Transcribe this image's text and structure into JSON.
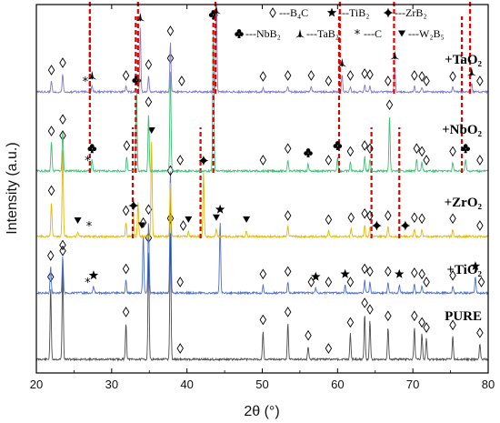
{
  "chart_data": {
    "type": "line",
    "xlabel": "2θ (°)",
    "ylabel": "Intensity (a.u.)",
    "xlim": [
      20,
      80
    ],
    "x_ticks": [
      "20",
      "30",
      "40",
      "50",
      "60",
      "70",
      "80"
    ],
    "grid": false,
    "legend_position": "top",
    "legend": [
      {
        "symbol": "diamond",
        "text": "---B₄C"
      },
      {
        "symbol": "star",
        "text": "---TiB₂"
      },
      {
        "symbol": "star4",
        "text": "---ZrB₂"
      },
      {
        "symbol": "club",
        "text": "---NbB₂"
      },
      {
        "symbol": "tab",
        "text": "---TaB₂"
      },
      {
        "symbol": "asterisk",
        "text": "---C"
      },
      {
        "symbol": "triangle-down",
        "text": "---W₂B₅"
      }
    ],
    "colors": {
      "PURE": "#4d4d4d",
      "+TiO₂": "#4a6fd0",
      "+ZrO₂": "#e6b800",
      "+NbO₂": "#3dbf73",
      "+TaO₂": "#7c7cc8",
      "dashed": "#e00000"
    },
    "series": [
      {
        "name": "PURE",
        "label": "PURE",
        "peaks": [
          [
            21.9,
            0.55
          ],
          [
            23.5,
            0.75
          ],
          [
            31.9,
            0.28
          ],
          [
            34.9,
            0.85
          ],
          [
            37.8,
            1.0
          ],
          [
            50.1,
            0.22
          ],
          [
            53.4,
            0.28
          ],
          [
            56.1,
            0.1
          ],
          [
            61.7,
            0.2
          ],
          [
            63.6,
            0.35
          ],
          [
            64.3,
            0.3
          ],
          [
            66.7,
            0.25
          ],
          [
            70.2,
            0.25
          ],
          [
            71.2,
            0.2
          ],
          [
            71.8,
            0.16
          ],
          [
            75.3,
            0.18
          ],
          [
            78.9,
            0.12
          ]
        ],
        "markers": [
          [
            21.9,
            "diamond"
          ],
          [
            23.5,
            "diamond"
          ],
          [
            31.9,
            "diamond"
          ],
          [
            34.9,
            "diamond"
          ],
          [
            37.8,
            "diamond"
          ],
          [
            39.1,
            "diamond"
          ],
          [
            50.1,
            "diamond"
          ],
          [
            53.4,
            "diamond"
          ],
          [
            56.1,
            "diamond"
          ],
          [
            58.8,
            "diamond"
          ],
          [
            61.7,
            "diamond"
          ],
          [
            63.6,
            "diamond"
          ],
          [
            64.3,
            "diamond"
          ],
          [
            66.7,
            "diamond"
          ],
          [
            70.2,
            "diamond"
          ],
          [
            71.2,
            "diamond"
          ],
          [
            71.8,
            "diamond"
          ],
          [
            75.3,
            "diamond"
          ],
          [
            78.9,
            "diamond"
          ]
        ],
        "dashed": []
      },
      {
        "name": "+TiO₂",
        "label": "+TiO₂",
        "peaks": [
          [
            21.9,
            0.2
          ],
          [
            23.5,
            0.28
          ],
          [
            27.6,
            0.05
          ],
          [
            31.9,
            0.1
          ],
          [
            34.2,
            0.45
          ],
          [
            34.9,
            0.55
          ],
          [
            37.8,
            0.95
          ],
          [
            44.4,
            0.55
          ],
          [
            50.1,
            0.06
          ],
          [
            53.4,
            0.08
          ],
          [
            57.1,
            0.04
          ],
          [
            61.0,
            0.06
          ],
          [
            63.6,
            0.1
          ],
          [
            64.3,
            0.08
          ],
          [
            66.7,
            0.08
          ],
          [
            68.2,
            0.06
          ],
          [
            70.2,
            0.07
          ],
          [
            71.2,
            0.06
          ],
          [
            75.3,
            0.05
          ],
          [
            78.3,
            0.12
          ]
        ],
        "markers": [
          [
            21.9,
            "diamond"
          ],
          [
            23.5,
            "diamond"
          ],
          [
            26.8,
            "asterisk"
          ],
          [
            27.6,
            "star"
          ],
          [
            31.9,
            "diamond"
          ],
          [
            34.2,
            "diamond"
          ],
          [
            34.9,
            "diamond"
          ],
          [
            39.1,
            "diamond"
          ],
          [
            44.4,
            "star"
          ],
          [
            50.1,
            "diamond"
          ],
          [
            53.4,
            "diamond"
          ],
          [
            56.5,
            "diamond"
          ],
          [
            57.1,
            "star"
          ],
          [
            58.8,
            "diamond"
          ],
          [
            61.0,
            "star"
          ],
          [
            61.7,
            "diamond"
          ],
          [
            63.6,
            "diamond"
          ],
          [
            64.3,
            "diamond"
          ],
          [
            66.7,
            "diamond"
          ],
          [
            68.2,
            "star"
          ],
          [
            70.2,
            "diamond"
          ],
          [
            71.2,
            "diamond"
          ],
          [
            71.8,
            "diamond"
          ],
          [
            75.3,
            "diamond"
          ],
          [
            78.3,
            "star"
          ],
          [
            79.1,
            "diamond"
          ]
        ],
        "dashed": []
      },
      {
        "name": "+ZrO₂",
        "label": "+ZrO₂",
        "peaks": [
          [
            22.0,
            0.35
          ],
          [
            23.5,
            0.9
          ],
          [
            25.5,
            0.05
          ],
          [
            31.9,
            0.15
          ],
          [
            32.9,
            0.2
          ],
          [
            33.5,
            0.35
          ],
          [
            35.3,
            0.95
          ],
          [
            37.8,
            0.55
          ],
          [
            40.2,
            0.06
          ],
          [
            42.2,
            0.65
          ],
          [
            43.9,
            0.08
          ],
          [
            47.9,
            0.06
          ],
          [
            53.4,
            0.1
          ],
          [
            58.8,
            0.06
          ],
          [
            61.8,
            0.08
          ],
          [
            63.6,
            0.12
          ],
          [
            64.3,
            0.1
          ],
          [
            66.7,
            0.1
          ],
          [
            70.2,
            0.08
          ],
          [
            71.2,
            0.07
          ],
          [
            75.3,
            0.07
          ]
        ],
        "markers": [
          [
            22.0,
            "diamond"
          ],
          [
            23.5,
            "diamond"
          ],
          [
            25.5,
            "triangle-down"
          ],
          [
            27.0,
            "asterisk"
          ],
          [
            31.9,
            "diamond"
          ],
          [
            32.9,
            "star4"
          ],
          [
            34.0,
            "triangle-down"
          ],
          [
            35.3,
            "triangle-down"
          ],
          [
            37.8,
            "diamond"
          ],
          [
            39.5,
            "diamond"
          ],
          [
            40.2,
            "triangle-down"
          ],
          [
            42.2,
            "star4"
          ],
          [
            43.9,
            "triangle-down"
          ],
          [
            47.9,
            "triangle-down"
          ],
          [
            53.4,
            "diamond"
          ],
          [
            58.8,
            "diamond"
          ],
          [
            61.8,
            "diamond"
          ],
          [
            63.6,
            "diamond"
          ],
          [
            64.3,
            "diamond"
          ],
          [
            65.2,
            "star4"
          ],
          [
            66.7,
            "diamond"
          ],
          [
            69.0,
            "star4"
          ],
          [
            70.2,
            "diamond"
          ],
          [
            71.2,
            "diamond"
          ],
          [
            75.3,
            "diamond"
          ],
          [
            78.9,
            "diamond"
          ]
        ],
        "dashed": [
          32.8,
          41.8,
          64.5,
          68.2
        ]
      },
      {
        "name": "+NbO₂",
        "label": "+NbO₂",
        "peaks": [
          [
            22.0,
            0.2
          ],
          [
            23.5,
            0.28
          ],
          [
            27.4,
            0.08
          ],
          [
            32.0,
            0.1
          ],
          [
            33.3,
            0.55
          ],
          [
            34.9,
            0.4
          ],
          [
            37.8,
            0.7
          ],
          [
            43.5,
            1.0
          ],
          [
            53.4,
            0.08
          ],
          [
            56.1,
            0.05
          ],
          [
            60.0,
            0.1
          ],
          [
            61.7,
            0.06
          ],
          [
            63.6,
            0.1
          ],
          [
            64.3,
            0.08
          ],
          [
            66.9,
            0.38
          ],
          [
            70.5,
            0.08
          ],
          [
            71.2,
            0.06
          ],
          [
            75.3,
            0.06
          ],
          [
            77.0,
            0.08
          ]
        ],
        "markers": [
          [
            22.0,
            "diamond"
          ],
          [
            23.5,
            "diamond"
          ],
          [
            26.8,
            "asterisk"
          ],
          [
            27.4,
            "club"
          ],
          [
            32.0,
            "diamond"
          ],
          [
            33.3,
            "club"
          ],
          [
            34.9,
            "diamond"
          ],
          [
            37.8,
            "diamond"
          ],
          [
            39.1,
            "diamond"
          ],
          [
            43.5,
            "club"
          ],
          [
            50.1,
            "diamond"
          ],
          [
            53.4,
            "diamond"
          ],
          [
            56.1,
            "club"
          ],
          [
            58.8,
            "diamond"
          ],
          [
            60.0,
            "club"
          ],
          [
            61.7,
            "diamond"
          ],
          [
            63.6,
            "diamond"
          ],
          [
            64.3,
            "diamond"
          ],
          [
            66.9,
            "diamond"
          ],
          [
            70.5,
            "diamond"
          ],
          [
            71.2,
            "diamond"
          ],
          [
            71.8,
            "diamond"
          ],
          [
            75.3,
            "diamond"
          ],
          [
            77.0,
            "club"
          ],
          [
            78.9,
            "diamond"
          ]
        ],
        "dashed": [
          27.1,
          33.2,
          43.5,
          60.2,
          76.5
        ]
      },
      {
        "name": "+TaO₂",
        "label": "+TaO₂",
        "peaks": [
          [
            22.0,
            0.12
          ],
          [
            23.5,
            0.2
          ],
          [
            27.4,
            0.06
          ],
          [
            31.9,
            0.06
          ],
          [
            33.8,
            0.7
          ],
          [
            34.9,
            0.18
          ],
          [
            37.8,
            0.55
          ],
          [
            43.9,
            1.0
          ],
          [
            50.1,
            0.05
          ],
          [
            53.4,
            0.06
          ],
          [
            56.5,
            0.06
          ],
          [
            60.6,
            0.2
          ],
          [
            61.7,
            0.06
          ],
          [
            63.6,
            0.08
          ],
          [
            64.3,
            0.07
          ],
          [
            67.6,
            0.28
          ],
          [
            70.2,
            0.06
          ],
          [
            71.2,
            0.05
          ],
          [
            75.3,
            0.05
          ],
          [
            77.8,
            0.1
          ]
        ],
        "markers": [
          [
            22.0,
            "diamond"
          ],
          [
            23.5,
            "diamond"
          ],
          [
            26.5,
            "asterisk"
          ],
          [
            27.4,
            "tab"
          ],
          [
            31.9,
            "diamond"
          ],
          [
            33.8,
            "tab"
          ],
          [
            34.9,
            "diamond"
          ],
          [
            37.8,
            "diamond"
          ],
          [
            39.3,
            "diamond"
          ],
          [
            43.9,
            "tab"
          ],
          [
            50.1,
            "diamond"
          ],
          [
            53.4,
            "diamond"
          ],
          [
            56.5,
            "diamond"
          ],
          [
            58.8,
            "diamond"
          ],
          [
            60.6,
            "tab"
          ],
          [
            61.7,
            "diamond"
          ],
          [
            63.6,
            "diamond"
          ],
          [
            64.3,
            "diamond"
          ],
          [
            66.7,
            "diamond"
          ],
          [
            67.6,
            "tab"
          ],
          [
            70.2,
            "diamond"
          ],
          [
            71.2,
            "diamond"
          ],
          [
            71.8,
            "diamond"
          ],
          [
            75.3,
            "diamond"
          ],
          [
            77.8,
            "tab"
          ],
          [
            78.9,
            "diamond"
          ]
        ],
        "dashed": [
          27.1,
          33.5,
          43.8,
          60.3,
          67.5,
          77.6
        ]
      }
    ]
  }
}
